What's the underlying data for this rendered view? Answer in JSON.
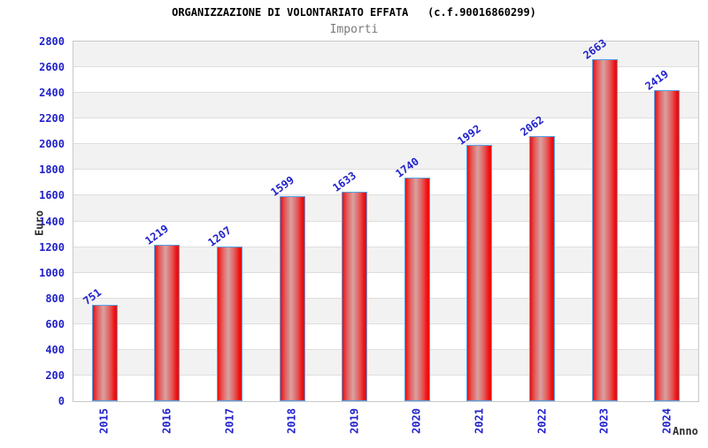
{
  "chart_data": {
    "type": "bar",
    "title": "ORGANIZZAZIONE DI VOLONTARIATO EFFATA   (c.f.90016860299)",
    "subtitle": "Importi",
    "ylabel": "Euro",
    "xlabel": "Anno",
    "categories": [
      "2015",
      "2016",
      "2017",
      "2018",
      "2019",
      "2020",
      "2021",
      "2022",
      "2023",
      "2024"
    ],
    "values": [
      751,
      1219,
      1207,
      1599,
      1633,
      1740,
      1992,
      2062,
      2663,
      2419
    ],
    "value_labels": [
      "751",
      "1219",
      "1207",
      "1599",
      "1633",
      "1740",
      "1992",
      "2062",
      "2663",
      "2419"
    ],
    "ylim": [
      0,
      2800
    ],
    "ytick_step": 200,
    "grid": "horizontal-bands",
    "legend": "none",
    "colors": {
      "tick_label": "#2222cc",
      "value_label": "#2222cc",
      "bar_edge": "#ee0d0d",
      "bar_mid": "#e35d5d",
      "bar_center": "#d9a1a1",
      "bar_border": "#57a0e4",
      "band_gray": "#f2f2f2",
      "band_white": "#ffffff",
      "gridline": "#dedede",
      "plot_border": "#c8c8c8",
      "title": "#000000",
      "subtitle": "#7a7a7a",
      "axis_title": "#2e2e2e"
    }
  }
}
